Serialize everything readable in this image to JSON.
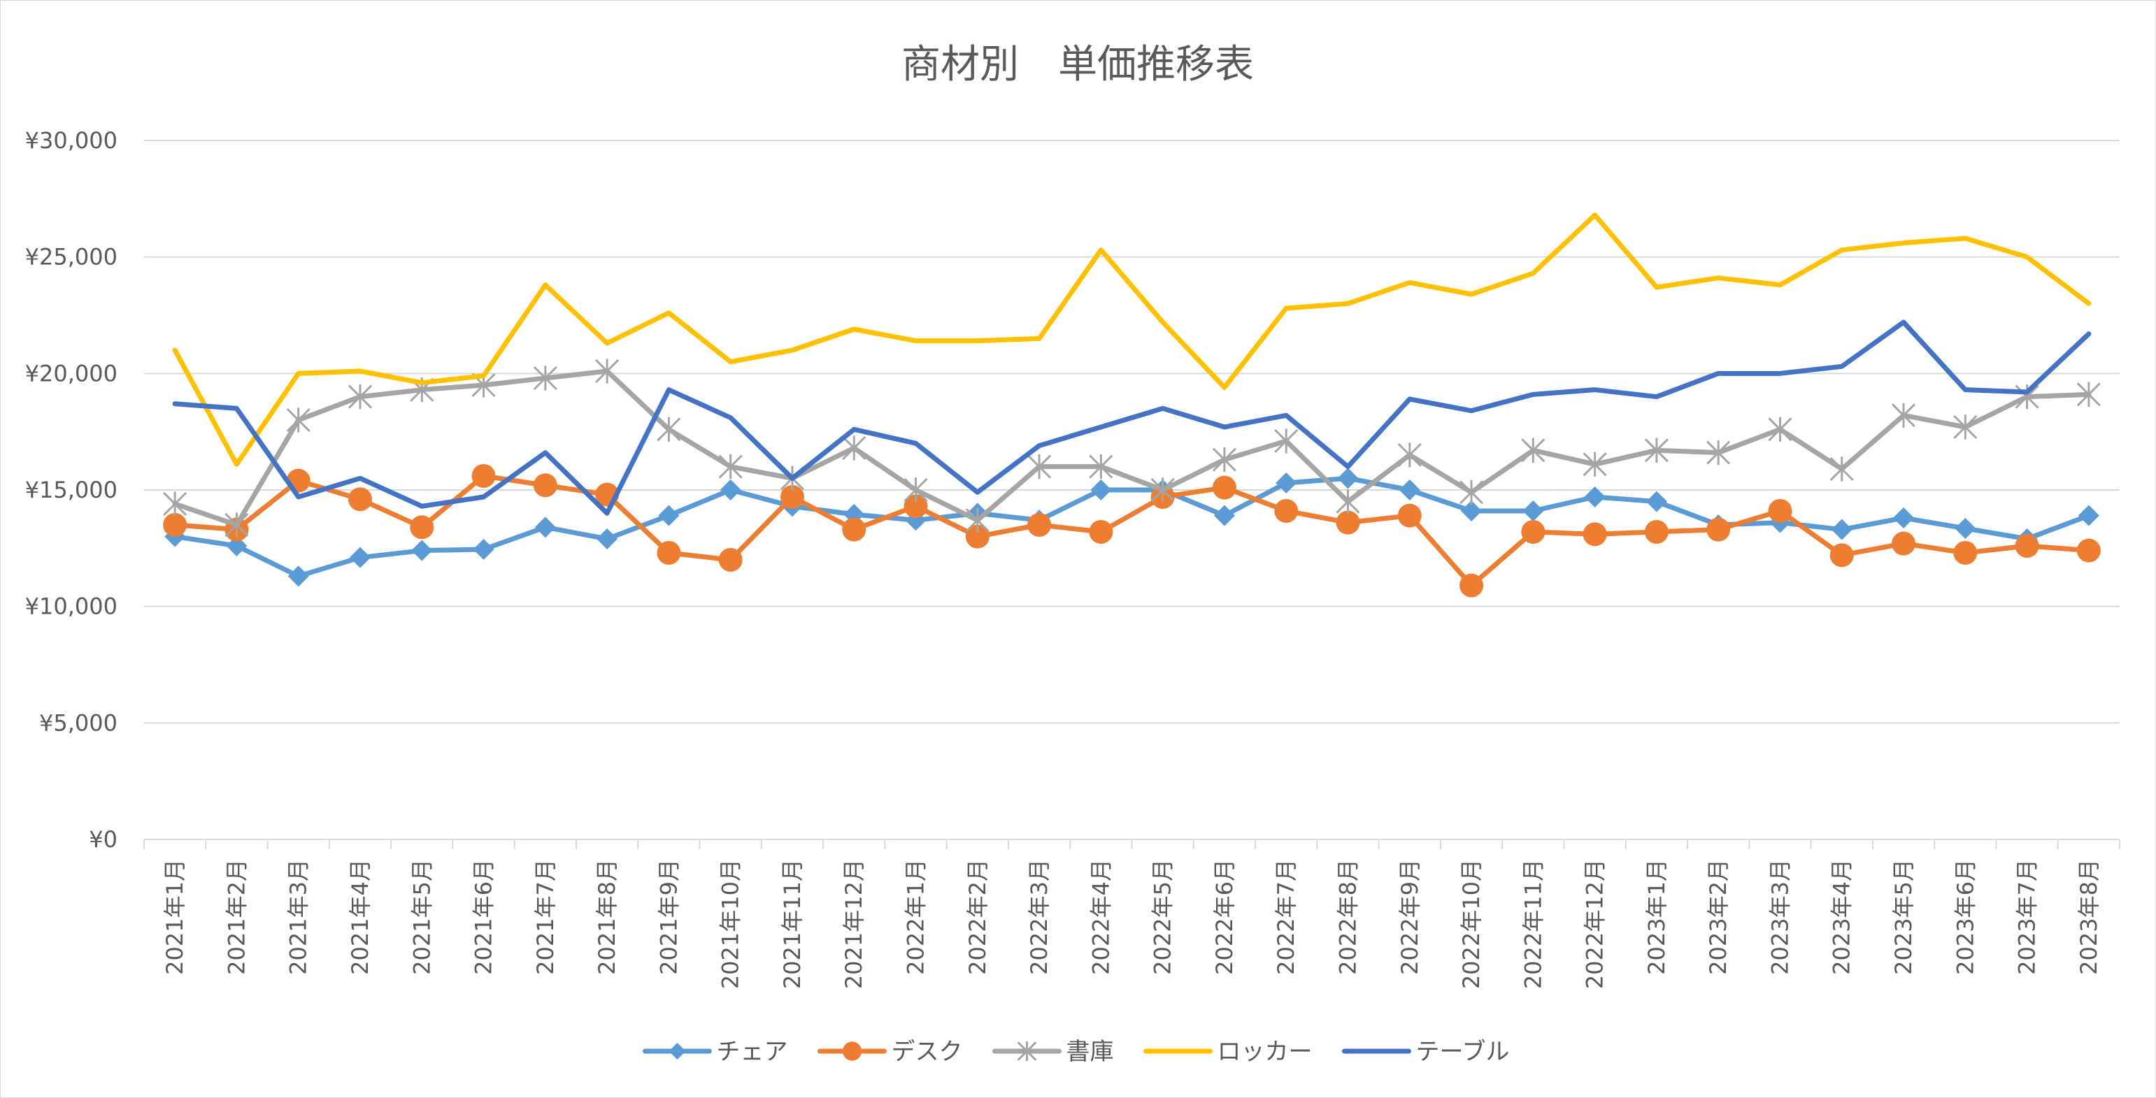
{
  "chart_data": {
    "type": "line",
    "title": "商材別　単価推移表",
    "xlabel": "",
    "ylabel": "",
    "ylim": [
      0,
      30000
    ],
    "yticks": [
      0,
      5000,
      10000,
      15000,
      20000,
      25000,
      30000
    ],
    "ytick_labels": [
      "¥0",
      "¥5,000",
      "¥10,000",
      "¥15,000",
      "¥20,000",
      "¥25,000",
      "¥30,000"
    ],
    "grid": true,
    "legend_position": "bottom",
    "categories": [
      "2021年1月",
      "2021年2月",
      "2021年3月",
      "2021年4月",
      "2021年5月",
      "2021年6月",
      "2021年7月",
      "2021年8月",
      "2021年9月",
      "2021年10月",
      "2021年11月",
      "2021年12月",
      "2022年1月",
      "2022年2月",
      "2022年3月",
      "2022年4月",
      "2022年5月",
      "2022年6月",
      "2022年7月",
      "2022年8月",
      "2022年9月",
      "2022年10月",
      "2022年11月",
      "2022年12月",
      "2023年1月",
      "2023年2月",
      "2023年3月",
      "2023年4月",
      "2023年5月",
      "2023年6月",
      "2023年7月",
      "2023年8月"
    ],
    "series": [
      {
        "name": "チェア",
        "color": "#5b9bd5",
        "marker": "diamond",
        "values": [
          13000,
          12600,
          11300,
          12100,
          12400,
          12450,
          13400,
          12900,
          13900,
          15000,
          14300,
          13950,
          13700,
          14000,
          13700,
          15000,
          15000,
          13900,
          15300,
          15500,
          15000,
          14100,
          14100,
          14700,
          14500,
          13500,
          13600,
          13300,
          13800,
          13350,
          12900,
          13900
        ]
      },
      {
        "name": "デスク",
        "color": "#ed7d31",
        "marker": "circle",
        "values": [
          13500,
          13300,
          15400,
          14600,
          13400,
          15600,
          15200,
          14800,
          12300,
          12000,
          14700,
          13300,
          14300,
          13000,
          13500,
          13200,
          14700,
          15100,
          14100,
          13600,
          13900,
          10900,
          13200,
          13100,
          13200,
          13300,
          14100,
          12200,
          12700,
          12300,
          12600,
          12400
        ]
      },
      {
        "name": "書庫",
        "color": "#a5a5a5",
        "marker": "star",
        "values": [
          14400,
          13500,
          18000,
          19000,
          19300,
          19500,
          19800,
          20100,
          17600,
          16000,
          15500,
          16800,
          15000,
          13700,
          16000,
          16000,
          15000,
          16300,
          17100,
          14500,
          16500,
          14900,
          16700,
          16100,
          16700,
          16600,
          17600,
          15900,
          18200,
          17700,
          19000,
          19100
        ]
      },
      {
        "name": "ロッカー",
        "color": "#ffc000",
        "marker": "none",
        "values": [
          21000,
          16100,
          20000,
          20100,
          19600,
          19900,
          23800,
          21300,
          22600,
          20500,
          21000,
          21900,
          21400,
          21400,
          21500,
          25300,
          22200,
          19400,
          22800,
          23000,
          23900,
          23400,
          24300,
          26800,
          23700,
          24100,
          23800,
          25300,
          25600,
          25800,
          25000,
          23000
        ]
      },
      {
        "name": "テーブル",
        "color": "#4472c4",
        "marker": "none",
        "values": [
          18700,
          18500,
          14700,
          15500,
          14300,
          14700,
          16600,
          14000,
          19300,
          18100,
          15500,
          17600,
          17000,
          14900,
          16900,
          17700,
          18500,
          17700,
          18200,
          16000,
          18900,
          18400,
          19100,
          19300,
          19000,
          20000,
          20000,
          20300,
          22200,
          19300,
          19200,
          21700
        ]
      }
    ]
  }
}
